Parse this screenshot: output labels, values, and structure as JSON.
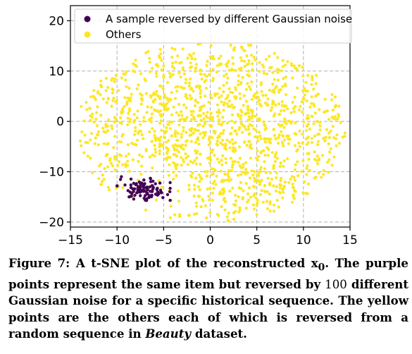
{
  "chart_data": {
    "type": "scatter",
    "title": "",
    "xlabel": "",
    "ylabel": "",
    "xlim": [
      -15,
      15
    ],
    "ylim": [
      -21,
      23
    ],
    "xticks": [
      -15,
      -10,
      -5,
      0,
      5,
      10,
      15
    ],
    "yticks": [
      20,
      10,
      0,
      -10,
      -20
    ],
    "grid": true,
    "legend_position": "top-left",
    "series": [
      {
        "name": "A sample reversed by different Gaussian noise",
        "color": "#440154",
        "count": 100,
        "center": [
          -7.0,
          -13.5
        ],
        "spread": [
          1.2,
          1.1
        ]
      },
      {
        "name": "Others",
        "color": "#fde725",
        "count": 1350,
        "x_range": [
          -14.5,
          14.5
        ],
        "y_range": [
          -20,
          16
        ]
      }
    ]
  },
  "caption": {
    "label": "Figure 7:",
    "text_before_math": "A t-SNE plot of the reconstructed",
    "math_symbol": "x",
    "math_subscript": "0",
    "text_after_math": ". The purple points represent the same item but reversed by",
    "count_value": "100",
    "text_middle": "different Gaussian noise for a specific historical sequence. The yellow points are the others each of which is reversed from a random sequence in",
    "dataset_name": "Beauty",
    "text_end": "dataset."
  }
}
